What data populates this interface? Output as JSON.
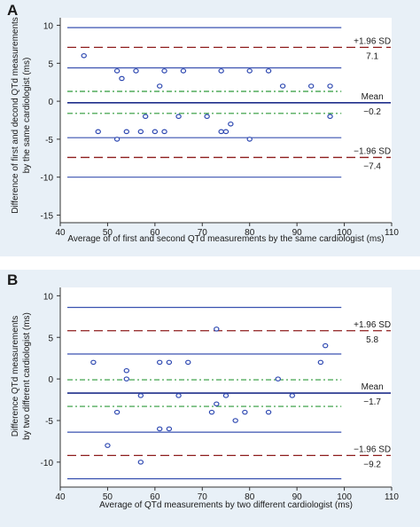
{
  "chart_data": [
    {
      "panel": "A",
      "type": "scatter",
      "xlabel": "Average of of first and second QTd measurements by the same cardiologist (ms)",
      "ylabel": "Difference of first and decond QTd measurements by the same cardiologist (ms)",
      "xlim": [
        40,
        110
      ],
      "ylim": [
        -16,
        11
      ],
      "xticks": [
        40,
        50,
        60,
        70,
        80,
        90,
        100,
        110
      ],
      "yticks": [
        -15,
        -10,
        -5,
        0,
        5,
        10
      ],
      "grid": false,
      "solid_lines": [
        9.7,
        4.4,
        -4.8,
        -10.0
      ],
      "mean": {
        "label": "Mean",
        "value": -0.2,
        "value_text": "−0.2"
      },
      "upper_limit": {
        "label": "+1.96 SD",
        "value": 7.1,
        "value_text": "7.1"
      },
      "lower_limit": {
        "label": "−1.96 SD",
        "value": -7.4,
        "value_text": "−7.4"
      },
      "green_lines": [
        1.3,
        -1.6
      ],
      "points": [
        {
          "x": 45,
          "y": 6
        },
        {
          "x": 52,
          "y": 4
        },
        {
          "x": 53,
          "y": 3
        },
        {
          "x": 56,
          "y": 4
        },
        {
          "x": 62,
          "y": 4
        },
        {
          "x": 66,
          "y": 4
        },
        {
          "x": 61,
          "y": 2
        },
        {
          "x": 74,
          "y": 4
        },
        {
          "x": 80,
          "y": 4
        },
        {
          "x": 84,
          "y": 4
        },
        {
          "x": 87,
          "y": 2
        },
        {
          "x": 93,
          "y": 2
        },
        {
          "x": 97,
          "y": 2
        },
        {
          "x": 48,
          "y": -4
        },
        {
          "x": 52,
          "y": -5
        },
        {
          "x": 54,
          "y": -4
        },
        {
          "x": 57,
          "y": -4
        },
        {
          "x": 58,
          "y": -2
        },
        {
          "x": 60,
          "y": -4
        },
        {
          "x": 62,
          "y": -4
        },
        {
          "x": 65,
          "y": -2
        },
        {
          "x": 71,
          "y": -2
        },
        {
          "x": 74,
          "y": -4
        },
        {
          "x": 75,
          "y": -4
        },
        {
          "x": 76,
          "y": -3
        },
        {
          "x": 80,
          "y": -5
        },
        {
          "x": 97,
          "y": -2
        }
      ]
    },
    {
      "panel": "B",
      "type": "scatter",
      "xlabel": "Average of QTd measurements by two different cardiologist (ms)",
      "ylabel": "Difference QTd measurements by two different cardiologist (ms)",
      "xlim": [
        40,
        110
      ],
      "ylim": [
        -13,
        11
      ],
      "xticks": [
        40,
        50,
        60,
        70,
        80,
        90,
        100,
        110
      ],
      "yticks": [
        -10,
        -5,
        0,
        5,
        10
      ],
      "grid": false,
      "solid_lines": [
        8.6,
        3.0,
        -6.4,
        -12.0
      ],
      "mean": {
        "label": "Mean",
        "value": -1.7,
        "value_text": "−1.7"
      },
      "upper_limit": {
        "label": "+1.96 SD",
        "value": 5.8,
        "value_text": "5.8"
      },
      "lower_limit": {
        "label": "−1.96 SD",
        "value": -9.2,
        "value_text": "−9.2"
      },
      "green_lines": [
        -0.1,
        -3.3
      ],
      "points": [
        {
          "x": 47,
          "y": 2
        },
        {
          "x": 54,
          "y": 0
        },
        {
          "x": 54,
          "y": 1
        },
        {
          "x": 61,
          "y": 2
        },
        {
          "x": 63,
          "y": 2
        },
        {
          "x": 67,
          "y": 2
        },
        {
          "x": 73,
          "y": 6
        },
        {
          "x": 95,
          "y": 2
        },
        {
          "x": 96,
          "y": 4
        },
        {
          "x": 52,
          "y": -4
        },
        {
          "x": 57,
          "y": -2
        },
        {
          "x": 61,
          "y": -6
        },
        {
          "x": 63,
          "y": -6
        },
        {
          "x": 65,
          "y": -2
        },
        {
          "x": 72,
          "y": -4
        },
        {
          "x": 73,
          "y": -3
        },
        {
          "x": 75,
          "y": -2
        },
        {
          "x": 77,
          "y": -5
        },
        {
          "x": 79,
          "y": -4
        },
        {
          "x": 84,
          "y": -4
        },
        {
          "x": 86,
          "y": 0
        },
        {
          "x": 89,
          "y": -2
        },
        {
          "x": 50,
          "y": -8
        },
        {
          "x": 57,
          "y": -10
        }
      ]
    }
  ]
}
